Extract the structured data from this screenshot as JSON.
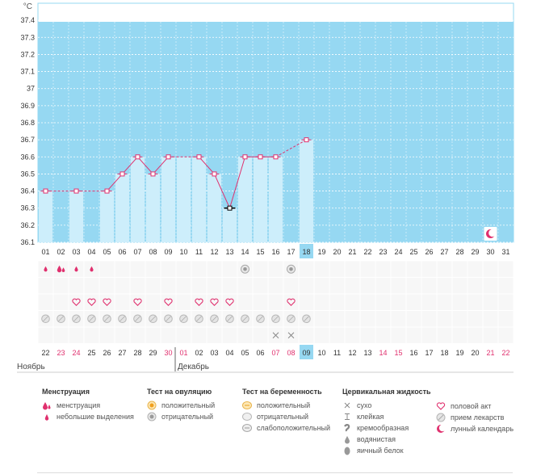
{
  "colors": {
    "chart_bg": "#96d8f2",
    "bar_fill": "#cdeefb",
    "selected_col": "#96d8f2",
    "line": "#e0306e",
    "accent_red": "#e0306e"
  },
  "chart_data": {
    "type": "line",
    "ylabel": "°C",
    "ylim": [
      36.1,
      37.5
    ],
    "yticks": [
      "37.4",
      "37.3",
      "37.2",
      "37.1",
      "37",
      "36.9",
      "36.8",
      "36.7",
      "36.6",
      "36.5",
      "36.4",
      "36.3",
      "36.2",
      "36.1"
    ],
    "cycle_days": [
      "01",
      "02",
      "03",
      "04",
      "05",
      "06",
      "07",
      "08",
      "09",
      "10",
      "11",
      "12",
      "13",
      "14",
      "15",
      "16",
      "17",
      "18",
      "19",
      "20",
      "21",
      "22",
      "23",
      "24",
      "25",
      "26",
      "27",
      "28",
      "29",
      "30",
      "31"
    ],
    "selected_day": "18",
    "dates": [
      "22",
      "23",
      "24",
      "25",
      "26",
      "27",
      "28",
      "29",
      "30",
      "01",
      "02",
      "03",
      "04",
      "05",
      "06",
      "07",
      "08",
      "09",
      "10",
      "11",
      "12",
      "13",
      "14",
      "15",
      "16",
      "17",
      "18",
      "19",
      "20",
      "21",
      "22"
    ],
    "date_highlight": [
      false,
      true,
      true,
      false,
      false,
      false,
      false,
      false,
      true,
      true,
      false,
      false,
      false,
      false,
      false,
      true,
      true,
      false,
      false,
      false,
      false,
      false,
      true,
      true,
      false,
      false,
      false,
      false,
      false,
      true,
      true
    ],
    "months": [
      "Ноябрь",
      "Декабрь"
    ],
    "temperature": [
      36.4,
      null,
      36.4,
      null,
      36.4,
      36.5,
      36.6,
      36.5,
      36.6,
      null,
      36.6,
      36.5,
      36.3,
      36.6,
      36.6,
      36.6,
      null,
      36.7,
      null,
      null,
      null,
      null,
      null,
      null,
      null,
      null,
      null,
      null,
      null,
      null,
      null
    ],
    "bars": [
      36.4,
      null,
      36.4,
      null,
      36.4,
      36.5,
      36.6,
      36.5,
      36.6,
      36.6,
      36.6,
      36.5,
      36.3,
      36.6,
      36.6,
      36.6,
      null,
      36.7,
      null,
      null,
      null,
      null,
      null,
      null,
      null,
      null,
      null,
      null,
      null,
      null,
      null
    ],
    "marker_types": [
      "sq",
      null,
      "sq",
      null,
      "sq",
      "sq",
      "sq",
      "sq",
      "sq",
      null,
      "sq",
      "sq",
      "sel",
      "sq",
      "sq",
      "sq",
      null,
      "sq",
      null,
      null,
      null,
      null,
      null,
      null,
      null,
      null,
      null,
      null,
      null,
      null,
      null
    ],
    "dashed_segments": [
      [
        1,
        3
      ],
      [
        3,
        5
      ],
      [
        9,
        11
      ],
      [
        16,
        18
      ]
    ],
    "moon_day": "30"
  },
  "grid_rows": {
    "menstruation": {
      "1": "light",
      "2": "heavy",
      "3": "light",
      "4": "light"
    },
    "ovulation_test": {
      "14": "negative",
      "17": "negative"
    },
    "sex": [
      3,
      4,
      5,
      7,
      9,
      11,
      12,
      13,
      17
    ],
    "medicine": [
      1,
      2,
      3,
      4,
      5,
      6,
      7,
      8,
      9,
      10,
      11,
      12,
      13,
      14,
      15,
      16,
      17,
      18
    ],
    "cervical": {
      "16": "dry",
      "17": "dry"
    }
  },
  "legend": {
    "menstruation": {
      "title": "Менструация",
      "items": [
        {
          "icon": "blood-drops-icon",
          "label": "менструация"
        },
        {
          "icon": "blood-drop-icon",
          "label": "небольшие выделения"
        }
      ]
    },
    "ovulation_test": {
      "title": "Тест на овуляцию",
      "items": [
        {
          "icon": "ovulation-positive-icon",
          "label": "положительный"
        },
        {
          "icon": "ovulation-negative-icon",
          "label": "отрицательный"
        }
      ]
    },
    "pregnancy_test": {
      "title": "Тест на беременность",
      "items": [
        {
          "icon": "pregnancy-positive-icon",
          "label": "положительный"
        },
        {
          "icon": "pregnancy-negative-icon",
          "label": "отрицательный"
        },
        {
          "icon": "pregnancy-weak-icon",
          "label": "слабоположительный"
        }
      ]
    },
    "cervical_fluid": {
      "title": "Цервикальная жидкость",
      "items": [
        {
          "icon": "dry-icon",
          "label": "сухо"
        },
        {
          "icon": "sticky-icon",
          "label": "клейкая"
        },
        {
          "icon": "creamy-icon",
          "label": "кремообразная"
        },
        {
          "icon": "watery-icon",
          "label": "водянистая"
        },
        {
          "icon": "egg-white-icon",
          "label": "яичный белок"
        }
      ]
    },
    "other": {
      "items": [
        {
          "icon": "heart-icon",
          "label": "половой акт"
        },
        {
          "icon": "pill-icon",
          "label": "прием лекарств"
        },
        {
          "icon": "moon-icon",
          "label": "лунный календарь"
        }
      ]
    }
  }
}
